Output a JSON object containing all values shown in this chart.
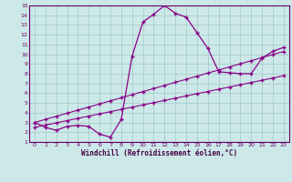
{
  "xlabel": "Windchill (Refroidissement éolien,°C)",
  "bg_color": "#cce8e8",
  "grid_color": "#aacccc",
  "line_color": "#880088",
  "xlim": [
    -0.5,
    23.5
  ],
  "ylim": [
    1,
    15
  ],
  "xticks": [
    0,
    1,
    2,
    3,
    4,
    5,
    6,
    7,
    8,
    9,
    10,
    11,
    12,
    13,
    14,
    15,
    16,
    17,
    18,
    19,
    20,
    21,
    22,
    23
  ],
  "yticks": [
    1,
    2,
    3,
    4,
    5,
    6,
    7,
    8,
    9,
    10,
    11,
    12,
    13,
    14,
    15
  ],
  "curve_x": [
    0,
    1,
    2,
    3,
    4,
    5,
    6,
    7,
    8,
    9,
    10,
    11,
    12,
    13,
    14,
    15,
    16,
    17,
    18,
    19,
    20,
    21,
    22,
    23
  ],
  "curve_y": [
    3.0,
    2.5,
    2.2,
    2.6,
    2.7,
    2.6,
    1.8,
    1.5,
    3.3,
    9.8,
    13.3,
    14.1,
    15.0,
    14.2,
    13.8,
    12.2,
    10.6,
    8.2,
    8.1,
    8.0,
    8.0,
    9.6,
    10.3,
    10.7
  ],
  "line1_x": [
    0,
    1,
    2,
    3,
    4,
    5,
    6,
    7,
    8,
    9,
    10,
    11,
    12,
    13,
    14,
    15,
    16,
    17,
    18,
    19,
    20,
    21,
    22,
    23
  ],
  "line1_y": [
    3.0,
    3.32,
    3.63,
    3.95,
    4.27,
    4.58,
    4.9,
    5.22,
    5.53,
    5.85,
    6.17,
    6.48,
    6.8,
    7.12,
    7.43,
    7.75,
    8.07,
    8.38,
    8.7,
    9.02,
    9.33,
    9.65,
    9.97,
    10.28
  ],
  "line2_x": [
    0,
    1,
    2,
    3,
    4,
    5,
    6,
    7,
    8,
    9,
    10,
    11,
    12,
    13,
    14,
    15,
    16,
    17,
    18,
    19,
    20,
    21,
    22,
    23
  ],
  "line2_y": [
    2.5,
    2.73,
    2.96,
    3.19,
    3.42,
    3.65,
    3.88,
    4.11,
    4.34,
    4.57,
    4.8,
    5.03,
    5.26,
    5.49,
    5.72,
    5.95,
    6.18,
    6.41,
    6.64,
    6.87,
    7.1,
    7.33,
    7.56,
    7.8
  ]
}
